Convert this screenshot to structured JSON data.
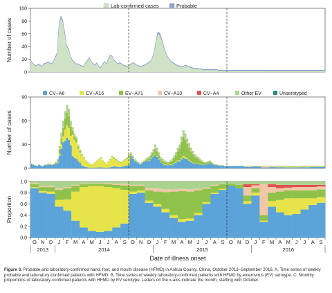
{
  "caption": {
    "label": "Figure 3.",
    "text": "Probable and laboratory-confirmed hand, foot, and mouth disease (HFMD) in Anhua County, China, October 2013–September 2016. A, Time series of weekly probable and laboratory-confirmed patients with HFMD. B, Time series of weekly laboratory-confirmed patients with HFMD by enterovirus (EV) serotype. C, Monthly proportions of laboratory-confirmed patients with HFMD by EV serotype. Letters on the x-axis indicate the month, starting with October."
  },
  "x_axis": {
    "title": "Date of illness onset",
    "months": [
      "O",
      "N",
      "D",
      "J",
      "F",
      "M",
      "A",
      "M",
      "J",
      "J",
      "A",
      "S",
      "O",
      "N",
      "D",
      "J",
      "F",
      "M",
      "A",
      "M",
      "J",
      "J",
      "A",
      "S",
      "O",
      "N",
      "D",
      "J",
      "F",
      "M",
      "A",
      "M",
      "J",
      "J",
      "A",
      "S"
    ],
    "years": [
      {
        "label": "2013",
        "start": 0,
        "end": 3
      },
      {
        "label": "2014",
        "start": 3,
        "end": 15
      },
      {
        "label": "2015",
        "start": 15,
        "end": 27
      },
      {
        "label": "2016",
        "start": 27,
        "end": 36
      }
    ],
    "season_dividers": [
      12,
      24
    ]
  },
  "chart_data": [
    {
      "type": "area",
      "panel": "A",
      "ylabel": "Number of cases",
      "ylim": [
        0,
        100
      ],
      "yticks": [
        0,
        20,
        40,
        60,
        80,
        100
      ],
      "legend": "top-center",
      "series": [
        {
          "name": "Lab-confirmed cases",
          "color": "#cfe3c6",
          "values": [
            18,
            14,
            11,
            9,
            12,
            10,
            8,
            12,
            13,
            15,
            14,
            12,
            16,
            22,
            28,
            70,
            85,
            78,
            60,
            40,
            35,
            25,
            18,
            15,
            12,
            12,
            10,
            9,
            8,
            14,
            18,
            22,
            16,
            12,
            10,
            14,
            8,
            6,
            12,
            16,
            12,
            20,
            26,
            24,
            18,
            15,
            12,
            14,
            12,
            10,
            9,
            8,
            10,
            12,
            14,
            12,
            10,
            9,
            8,
            9,
            10,
            12,
            14,
            16,
            20,
            30,
            45,
            60,
            58,
            50,
            40,
            30,
            24,
            20,
            16,
            14,
            12,
            10,
            9,
            8,
            8,
            9,
            10,
            8,
            7,
            6,
            5,
            5,
            5,
            4,
            4,
            3,
            3,
            3,
            3,
            3,
            3,
            3,
            3,
            2,
            2,
            2,
            2,
            2,
            2,
            2,
            2,
            2,
            2,
            2,
            2,
            2,
            2,
            2,
            2,
            2,
            2,
            2,
            2,
            2,
            2,
            2,
            2,
            2,
            2,
            2,
            2,
            2,
            2,
            2,
            2,
            2,
            2,
            2,
            2,
            2,
            2,
            2,
            2,
            2,
            2,
            2,
            2,
            2,
            2,
            2,
            2,
            2,
            2,
            2,
            2,
            2,
            2,
            2,
            2,
            2,
            2
          ]
        },
        {
          "name": "Probable",
          "color": "#8fa3cf",
          "values": [
            19,
            15,
            12,
            10,
            13,
            11,
            9,
            13,
            14,
            16,
            15,
            13,
            17,
            23,
            30,
            73,
            88,
            81,
            63,
            42,
            37,
            26,
            19,
            16,
            13,
            13,
            11,
            10,
            9,
            15,
            19,
            23,
            17,
            13,
            11,
            15,
            9,
            7,
            13,
            17,
            13,
            21,
            27,
            25,
            19,
            16,
            13,
            15,
            13,
            11,
            10,
            9,
            11,
            13,
            15,
            13,
            11,
            10,
            9,
            10,
            11,
            13,
            15,
            17,
            21,
            32,
            47,
            63,
            61,
            53,
            42,
            32,
            25,
            21,
            17,
            15,
            13,
            11,
            10,
            9,
            9,
            10,
            11,
            9,
            8,
            7,
            6,
            6,
            6,
            5,
            5,
            4,
            4,
            4,
            4,
            4,
            4,
            4,
            4,
            3,
            3,
            3,
            3,
            3,
            3,
            3,
            3,
            3,
            3,
            3,
            3,
            3,
            3,
            3,
            3,
            3,
            3,
            3,
            3,
            3,
            3,
            3,
            3,
            3,
            3,
            3,
            3,
            3,
            3,
            3,
            3,
            3,
            3,
            3,
            3,
            3,
            3,
            3,
            3,
            3,
            3,
            3,
            3,
            3,
            3,
            3,
            3,
            3,
            3,
            3,
            3,
            3,
            3,
            3,
            3,
            3
          ]
        }
      ]
    },
    {
      "type": "bar",
      "panel": "B",
      "stacked": true,
      "ylabel": "Number of cases",
      "ylim": [
        0,
        90
      ],
      "yticks": [
        0,
        30,
        60,
        90
      ],
      "legend": "top",
      "series": [
        {
          "name": "CV−A6",
          "color": "#5ba3d9"
        },
        {
          "name": "CV−A16",
          "color": "#e7e44a"
        },
        {
          "name": "EV−A71",
          "color": "#8fc24a"
        },
        {
          "name": "CV−A10",
          "color": "#f2c7a8"
        },
        {
          "name": "CV−A4",
          "color": "#e0524f"
        },
        {
          "name": "Other EV",
          "color": "#a9d48d"
        },
        {
          "name": "Unserotyped",
          "color": "#2f8a84"
        }
      ],
      "weekly_totals": [
        6,
        5,
        4,
        3,
        5,
        4,
        3,
        5,
        5,
        6,
        6,
        5,
        6,
        8,
        12,
        28,
        45,
        60,
        72,
        80,
        75,
        60,
        52,
        44,
        40,
        30,
        24,
        18,
        14,
        10,
        8,
        6,
        5,
        6,
        8,
        10,
        12,
        14,
        10,
        8,
        6,
        9,
        12,
        16,
        14,
        12,
        10,
        9,
        8,
        10,
        12,
        14,
        18,
        20,
        16,
        12,
        10,
        8,
        6,
        8,
        10,
        12,
        14,
        16,
        20,
        24,
        30,
        26,
        20,
        14,
        12,
        10,
        9,
        8,
        10,
        12,
        16,
        20,
        26,
        30,
        40,
        48,
        44,
        38,
        32,
        26,
        22,
        18,
        16,
        14,
        12,
        10,
        8,
        8,
        9,
        10,
        8,
        6,
        5,
        5,
        4,
        4,
        4,
        3,
        3,
        3,
        3,
        3,
        3,
        3,
        3,
        3,
        3,
        3,
        3,
        3,
        3,
        3,
        3,
        3,
        3,
        3,
        3,
        3,
        3,
        3,
        3,
        3,
        3,
        3,
        3,
        3,
        3,
        3,
        3,
        3,
        3,
        3,
        3,
        3,
        3,
        3,
        3,
        3,
        3,
        3,
        3,
        3,
        3,
        3,
        3,
        3,
        3,
        3,
        3,
        3,
        3
      ]
    },
    {
      "type": "bar",
      "panel": "C",
      "stacked": true,
      "ylabel": "Proportion",
      "ylim": [
        0,
        1
      ],
      "yticks": [
        0,
        0.2,
        0.4,
        0.6,
        0.8,
        1.0
      ],
      "categories": [
        "O",
        "N",
        "D",
        "J",
        "F",
        "M",
        "A",
        "M",
        "J",
        "J",
        "A",
        "S",
        "O",
        "N",
        "D",
        "J",
        "F",
        "M",
        "A",
        "M",
        "J",
        "J",
        "A",
        "S",
        "O",
        "N",
        "D",
        "J",
        "F",
        "M",
        "A",
        "M",
        "J",
        "J",
        "A",
        "S"
      ],
      "proportions": [
        {
          "CV−A6": 0.88,
          "CV−A16": 0.02,
          "EV−A71": 0.05,
          "CV−A10": 0.02,
          "CV−A4": 0.0,
          "Other EV": 0.03,
          "Unserotyped": 0.0
        },
        {
          "CV−A6": 0.8,
          "CV−A16": 0.03,
          "EV−A71": 0.07,
          "CV−A10": 0.02,
          "CV−A4": 0.0,
          "Other EV": 0.08,
          "Unserotyped": 0.0
        },
        {
          "CV−A6": 0.78,
          "CV−A16": 0.04,
          "EV−A71": 0.08,
          "CV−A10": 0.02,
          "CV−A4": 0.0,
          "Other EV": 0.08,
          "Unserotyped": 0.0
        },
        {
          "CV−A6": 0.55,
          "CV−A16": 0.12,
          "EV−A71": 0.18,
          "CV−A10": 0.03,
          "CV−A4": 0.0,
          "Other EV": 0.12,
          "Unserotyped": 0.0
        },
        {
          "CV−A6": 0.48,
          "CV−A16": 0.2,
          "EV−A71": 0.2,
          "CV−A10": 0.02,
          "CV−A4": 0.0,
          "Other EV": 0.1,
          "Unserotyped": 0.0
        },
        {
          "CV−A6": 0.3,
          "CV−A16": 0.52,
          "EV−A71": 0.1,
          "CV−A10": 0.02,
          "CV−A4": 0.0,
          "Other EV": 0.06,
          "Unserotyped": 0.0
        },
        {
          "CV−A6": 0.18,
          "CV−A16": 0.72,
          "EV−A71": 0.05,
          "CV−A10": 0.01,
          "CV−A4": 0.0,
          "Other EV": 0.04,
          "Unserotyped": 0.0
        },
        {
          "CV−A6": 0.12,
          "CV−A16": 0.8,
          "EV−A71": 0.04,
          "CV−A10": 0.01,
          "CV−A4": 0.0,
          "Other EV": 0.03,
          "Unserotyped": 0.0
        },
        {
          "CV−A6": 0.1,
          "CV−A16": 0.82,
          "EV−A71": 0.04,
          "CV−A10": 0.01,
          "CV−A4": 0.0,
          "Other EV": 0.03,
          "Unserotyped": 0.0
        },
        {
          "CV−A6": 0.12,
          "CV−A16": 0.78,
          "EV−A71": 0.05,
          "CV−A10": 0.02,
          "CV−A4": 0.0,
          "Other EV": 0.03,
          "Unserotyped": 0.0
        },
        {
          "CV−A6": 0.18,
          "CV−A16": 0.7,
          "EV−A71": 0.06,
          "CV−A10": 0.02,
          "CV−A4": 0.0,
          "Other EV": 0.04,
          "Unserotyped": 0.0
        },
        {
          "CV−A6": 0.25,
          "CV−A16": 0.6,
          "EV−A71": 0.08,
          "CV−A10": 0.03,
          "CV−A4": 0.0,
          "Other EV": 0.04,
          "Unserotyped": 0.0
        },
        {
          "CV−A6": 0.78,
          "CV−A16": 0.04,
          "EV−A71": 0.1,
          "CV−A10": 0.02,
          "CV−A4": 0.0,
          "Other EV": 0.06,
          "Unserotyped": 0.0
        },
        {
          "CV−A6": 0.8,
          "CV−A16": 0.04,
          "EV−A71": 0.08,
          "CV−A10": 0.02,
          "CV−A4": 0.0,
          "Other EV": 0.06,
          "Unserotyped": 0.0
        },
        {
          "CV−A6": 0.62,
          "CV−A16": 0.04,
          "EV−A71": 0.18,
          "CV−A10": 0.04,
          "CV−A4": 0.0,
          "Other EV": 0.12,
          "Unserotyped": 0.0
        },
        {
          "CV−A6": 0.55,
          "CV−A16": 0.05,
          "EV−A71": 0.22,
          "CV−A10": 0.06,
          "CV−A4": 0.0,
          "Other EV": 0.12,
          "Unserotyped": 0.0
        },
        {
          "CV−A6": 0.45,
          "CV−A16": 0.06,
          "EV−A71": 0.3,
          "CV−A10": 0.05,
          "CV−A4": 0.0,
          "Other EV": 0.14,
          "Unserotyped": 0.0
        },
        {
          "CV−A6": 0.35,
          "CV−A16": 0.05,
          "EV−A71": 0.42,
          "CV−A10": 0.04,
          "CV−A4": 0.0,
          "Other EV": 0.14,
          "Unserotyped": 0.0
        },
        {
          "CV−A6": 0.28,
          "CV−A16": 0.05,
          "EV−A71": 0.5,
          "CV−A10": 0.04,
          "CV−A4": 0.0,
          "Other EV": 0.13,
          "Unserotyped": 0.0
        },
        {
          "CV−A6": 0.3,
          "CV−A16": 0.04,
          "EV−A71": 0.48,
          "CV−A10": 0.04,
          "CV−A4": 0.0,
          "Other EV": 0.14,
          "Unserotyped": 0.0
        },
        {
          "CV−A6": 0.4,
          "CV−A16": 0.04,
          "EV−A71": 0.4,
          "CV−A10": 0.03,
          "CV−A4": 0.0,
          "Other EV": 0.13,
          "Unserotyped": 0.0
        },
        {
          "CV−A6": 0.6,
          "CV−A16": 0.03,
          "EV−A71": 0.24,
          "CV−A10": 0.02,
          "CV−A4": 0.0,
          "Other EV": 0.11,
          "Unserotyped": 0.0
        },
        {
          "CV−A6": 0.78,
          "CV−A16": 0.02,
          "EV−A71": 0.12,
          "CV−A10": 0.02,
          "CV−A4": 0.0,
          "Other EV": 0.06,
          "Unserotyped": 0.0
        },
        {
          "CV−A6": 0.85,
          "CV−A16": 0.02,
          "EV−A71": 0.08,
          "CV−A10": 0.01,
          "CV−A4": 0.0,
          "Other EV": 0.04,
          "Unserotyped": 0.0
        },
        {
          "CV−A6": 0.92,
          "CV−A16": 0.0,
          "EV−A71": 0.04,
          "CV−A10": 0.0,
          "CV−A4": 0.0,
          "Other EV": 0.04,
          "Unserotyped": 0.0
        },
        {
          "CV−A6": 0.88,
          "CV−A16": 0.0,
          "EV−A71": 0.06,
          "CV−A10": 0.0,
          "CV−A4": 0.0,
          "Other EV": 0.06,
          "Unserotyped": 0.0
        },
        {
          "CV−A6": 0.6,
          "CV−A16": 0.05,
          "EV−A71": 0.1,
          "CV−A10": 0.15,
          "CV−A4": 0.05,
          "Other EV": 0.05,
          "Unserotyped": 0.0
        },
        {
          "CV−A6": 0.75,
          "CV−A16": 0.05,
          "EV−A71": 0.08,
          "CV−A10": 0.05,
          "CV−A4": 0.02,
          "Other EV": 0.05,
          "Unserotyped": 0.0
        },
        {
          "CV−A6": 0.28,
          "CV−A16": 0.02,
          "EV−A71": 0.1,
          "CV−A10": 0.55,
          "CV−A4": 0.0,
          "Other EV": 0.05,
          "Unserotyped": 0.0
        },
        {
          "CV−A6": 0.55,
          "CV−A16": 0.1,
          "EV−A71": 0.15,
          "CV−A10": 0.1,
          "CV−A4": 0.05,
          "Other EV": 0.05,
          "Unserotyped": 0.0
        },
        {
          "CV−A6": 0.45,
          "CV−A16": 0.22,
          "EV−A71": 0.15,
          "CV−A10": 0.06,
          "CV−A4": 0.06,
          "Other EV": 0.06,
          "Unserotyped": 0.0
        },
        {
          "CV−A6": 0.4,
          "CV−A16": 0.3,
          "EV−A71": 0.14,
          "CV−A10": 0.05,
          "CV−A4": 0.05,
          "Other EV": 0.06,
          "Unserotyped": 0.0
        },
        {
          "CV−A6": 0.42,
          "CV−A16": 0.28,
          "EV−A71": 0.14,
          "CV−A10": 0.06,
          "CV−A4": 0.04,
          "Other EV": 0.06,
          "Unserotyped": 0.0
        },
        {
          "CV−A6": 0.5,
          "CV−A16": 0.2,
          "EV−A71": 0.14,
          "CV−A10": 0.06,
          "CV−A4": 0.04,
          "Other EV": 0.06,
          "Unserotyped": 0.0
        },
        {
          "CV−A6": 0.58,
          "CV−A16": 0.12,
          "EV−A71": 0.14,
          "CV−A10": 0.06,
          "CV−A4": 0.04,
          "Other EV": 0.06,
          "Unserotyped": 0.0
        },
        {
          "CV−A6": 0.62,
          "CV−A16": 0.1,
          "EV−A71": 0.14,
          "CV−A10": 0.05,
          "CV−A4": 0.03,
          "Other EV": 0.06,
          "Unserotyped": 0.0
        }
      ]
    }
  ]
}
